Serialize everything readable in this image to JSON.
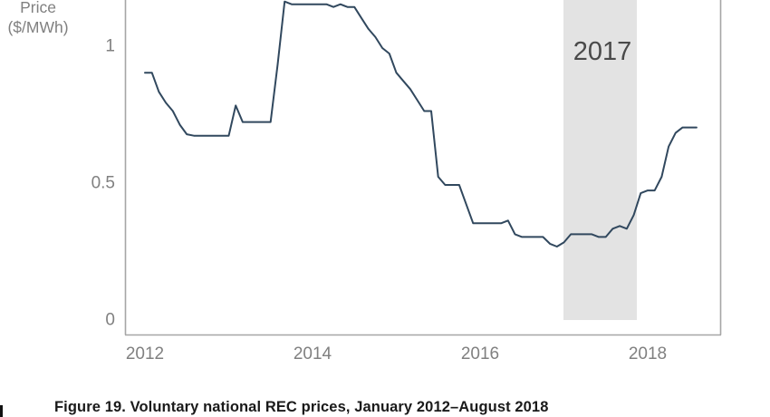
{
  "figure": {
    "caption": "Figure 19. Voluntary national REC prices, January 2012–August 2018",
    "y_axis_title_line1": "Price",
    "y_axis_title_line2": "($/MWh)",
    "band_label": "2017",
    "colors": {
      "line": "#31485e",
      "axis": "#a6a6a6",
      "tick_text": "#808080",
      "band_fill": "#e3e3e3",
      "band_text": "#4a4a4a",
      "background": "#ffffff"
    }
  },
  "chart_data": {
    "type": "line",
    "title": "",
    "xlabel": "",
    "ylabel": "Price ($/MWh)",
    "x_start": "2012-01",
    "x_end": "2018-08",
    "frequency": "monthly",
    "x_tick_labels": [
      "2012",
      "2014",
      "2016",
      "2018"
    ],
    "y_tick_labels": [
      "0",
      "0.5",
      "1"
    ],
    "y_tick_values": [
      0,
      0.5,
      1
    ],
    "ylim": [
      0,
      1.17
    ],
    "grid": false,
    "legend": "none",
    "highlight_band": {
      "label": "2017",
      "start": "2017-01",
      "end": "2017-12"
    },
    "series": [
      {
        "name": "Voluntary national REC price ($/MWh)",
        "values": [
          0.9,
          0.9,
          0.83,
          0.79,
          0.76,
          0.71,
          0.675,
          0.67,
          0.67,
          0.67,
          0.67,
          0.67,
          0.67,
          0.78,
          0.72,
          0.72,
          0.72,
          0.72,
          0.72,
          0.93,
          1.16,
          1.15,
          1.15,
          1.15,
          1.15,
          1.15,
          1.15,
          1.14,
          1.15,
          1.14,
          1.14,
          1.1,
          1.06,
          1.03,
          0.99,
          0.97,
          0.9,
          0.87,
          0.84,
          0.8,
          0.76,
          0.76,
          0.52,
          0.49,
          0.49,
          0.49,
          0.42,
          0.35,
          0.35,
          0.35,
          0.35,
          0.35,
          0.36,
          0.31,
          0.3,
          0.3,
          0.3,
          0.3,
          0.275,
          0.265,
          0.28,
          0.31,
          0.31,
          0.31,
          0.31,
          0.3,
          0.3,
          0.33,
          0.34,
          0.33,
          0.38,
          0.46,
          0.47,
          0.47,
          0.52,
          0.63,
          0.68,
          0.7,
          0.7,
          0.7
        ]
      }
    ]
  }
}
